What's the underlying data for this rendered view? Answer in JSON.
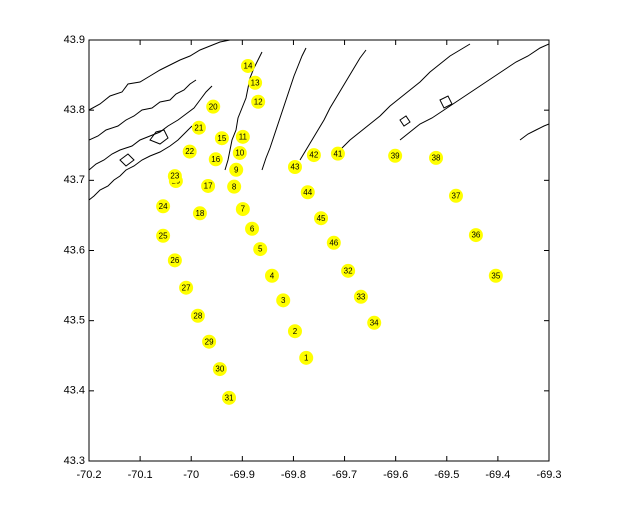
{
  "chart_data": {
    "type": "scatter",
    "xlim": [
      -70.2,
      -69.3
    ],
    "ylim": [
      43.3,
      43.9
    ],
    "xticks": [
      -70.2,
      -70.1,
      -70,
      -69.9,
      -69.8,
      -69.7,
      -69.6,
      -69.5,
      -69.4,
      -69.3
    ],
    "yticks": [
      43.3,
      43.4,
      43.5,
      43.6,
      43.7,
      43.8,
      43.9
    ],
    "color": "#ffff00",
    "labels": [
      "1",
      "2",
      "3",
      "4",
      "5",
      "6",
      "7",
      "8",
      "9",
      "10",
      "11",
      "12",
      "13",
      "14",
      "15",
      "16",
      "17",
      "18",
      "19",
      "20",
      "21",
      "22",
      "23",
      "24",
      "25",
      "26",
      "27",
      "28",
      "29",
      "30",
      "31",
      "32",
      "33",
      "34",
      "35",
      "36",
      "37",
      "38",
      "39",
      "41",
      "42",
      "43",
      "44",
      "45",
      "46"
    ],
    "x": [
      -69.775,
      -69.797,
      -69.82,
      -69.842,
      -69.865,
      -69.881,
      -69.899,
      -69.916,
      -69.912,
      -69.905,
      -69.899,
      -69.869,
      -69.875,
      -69.889,
      -69.94,
      -69.952,
      -69.967,
      -69.983,
      -70.03,
      -69.957,
      -69.985,
      -70.003,
      -70.032,
      -70.055,
      -70.055,
      -70.032,
      -70.01,
      -69.987,
      -69.965,
      -69.944,
      -69.926,
      -69.693,
      -69.668,
      -69.642,
      -69.404,
      -69.443,
      -69.482,
      -69.521,
      -69.601,
      -69.713,
      -69.76,
      -69.797,
      -69.772,
      -69.746,
      -69.721
    ],
    "y": [
      43.447,
      43.485,
      43.529,
      43.564,
      43.602,
      43.631,
      43.659,
      43.691,
      43.715,
      43.739,
      43.762,
      43.812,
      43.839,
      43.863,
      43.76,
      43.73,
      43.692,
      43.653,
      43.699,
      43.805,
      43.775,
      43.741,
      43.706,
      43.663,
      43.621,
      43.586,
      43.547,
      43.507,
      43.47,
      43.431,
      43.39,
      43.571,
      43.534,
      43.497,
      43.564,
      43.622,
      43.678,
      43.732,
      43.735,
      43.738,
      43.736,
      43.719,
      43.683,
      43.646,
      43.611
    ]
  }
}
